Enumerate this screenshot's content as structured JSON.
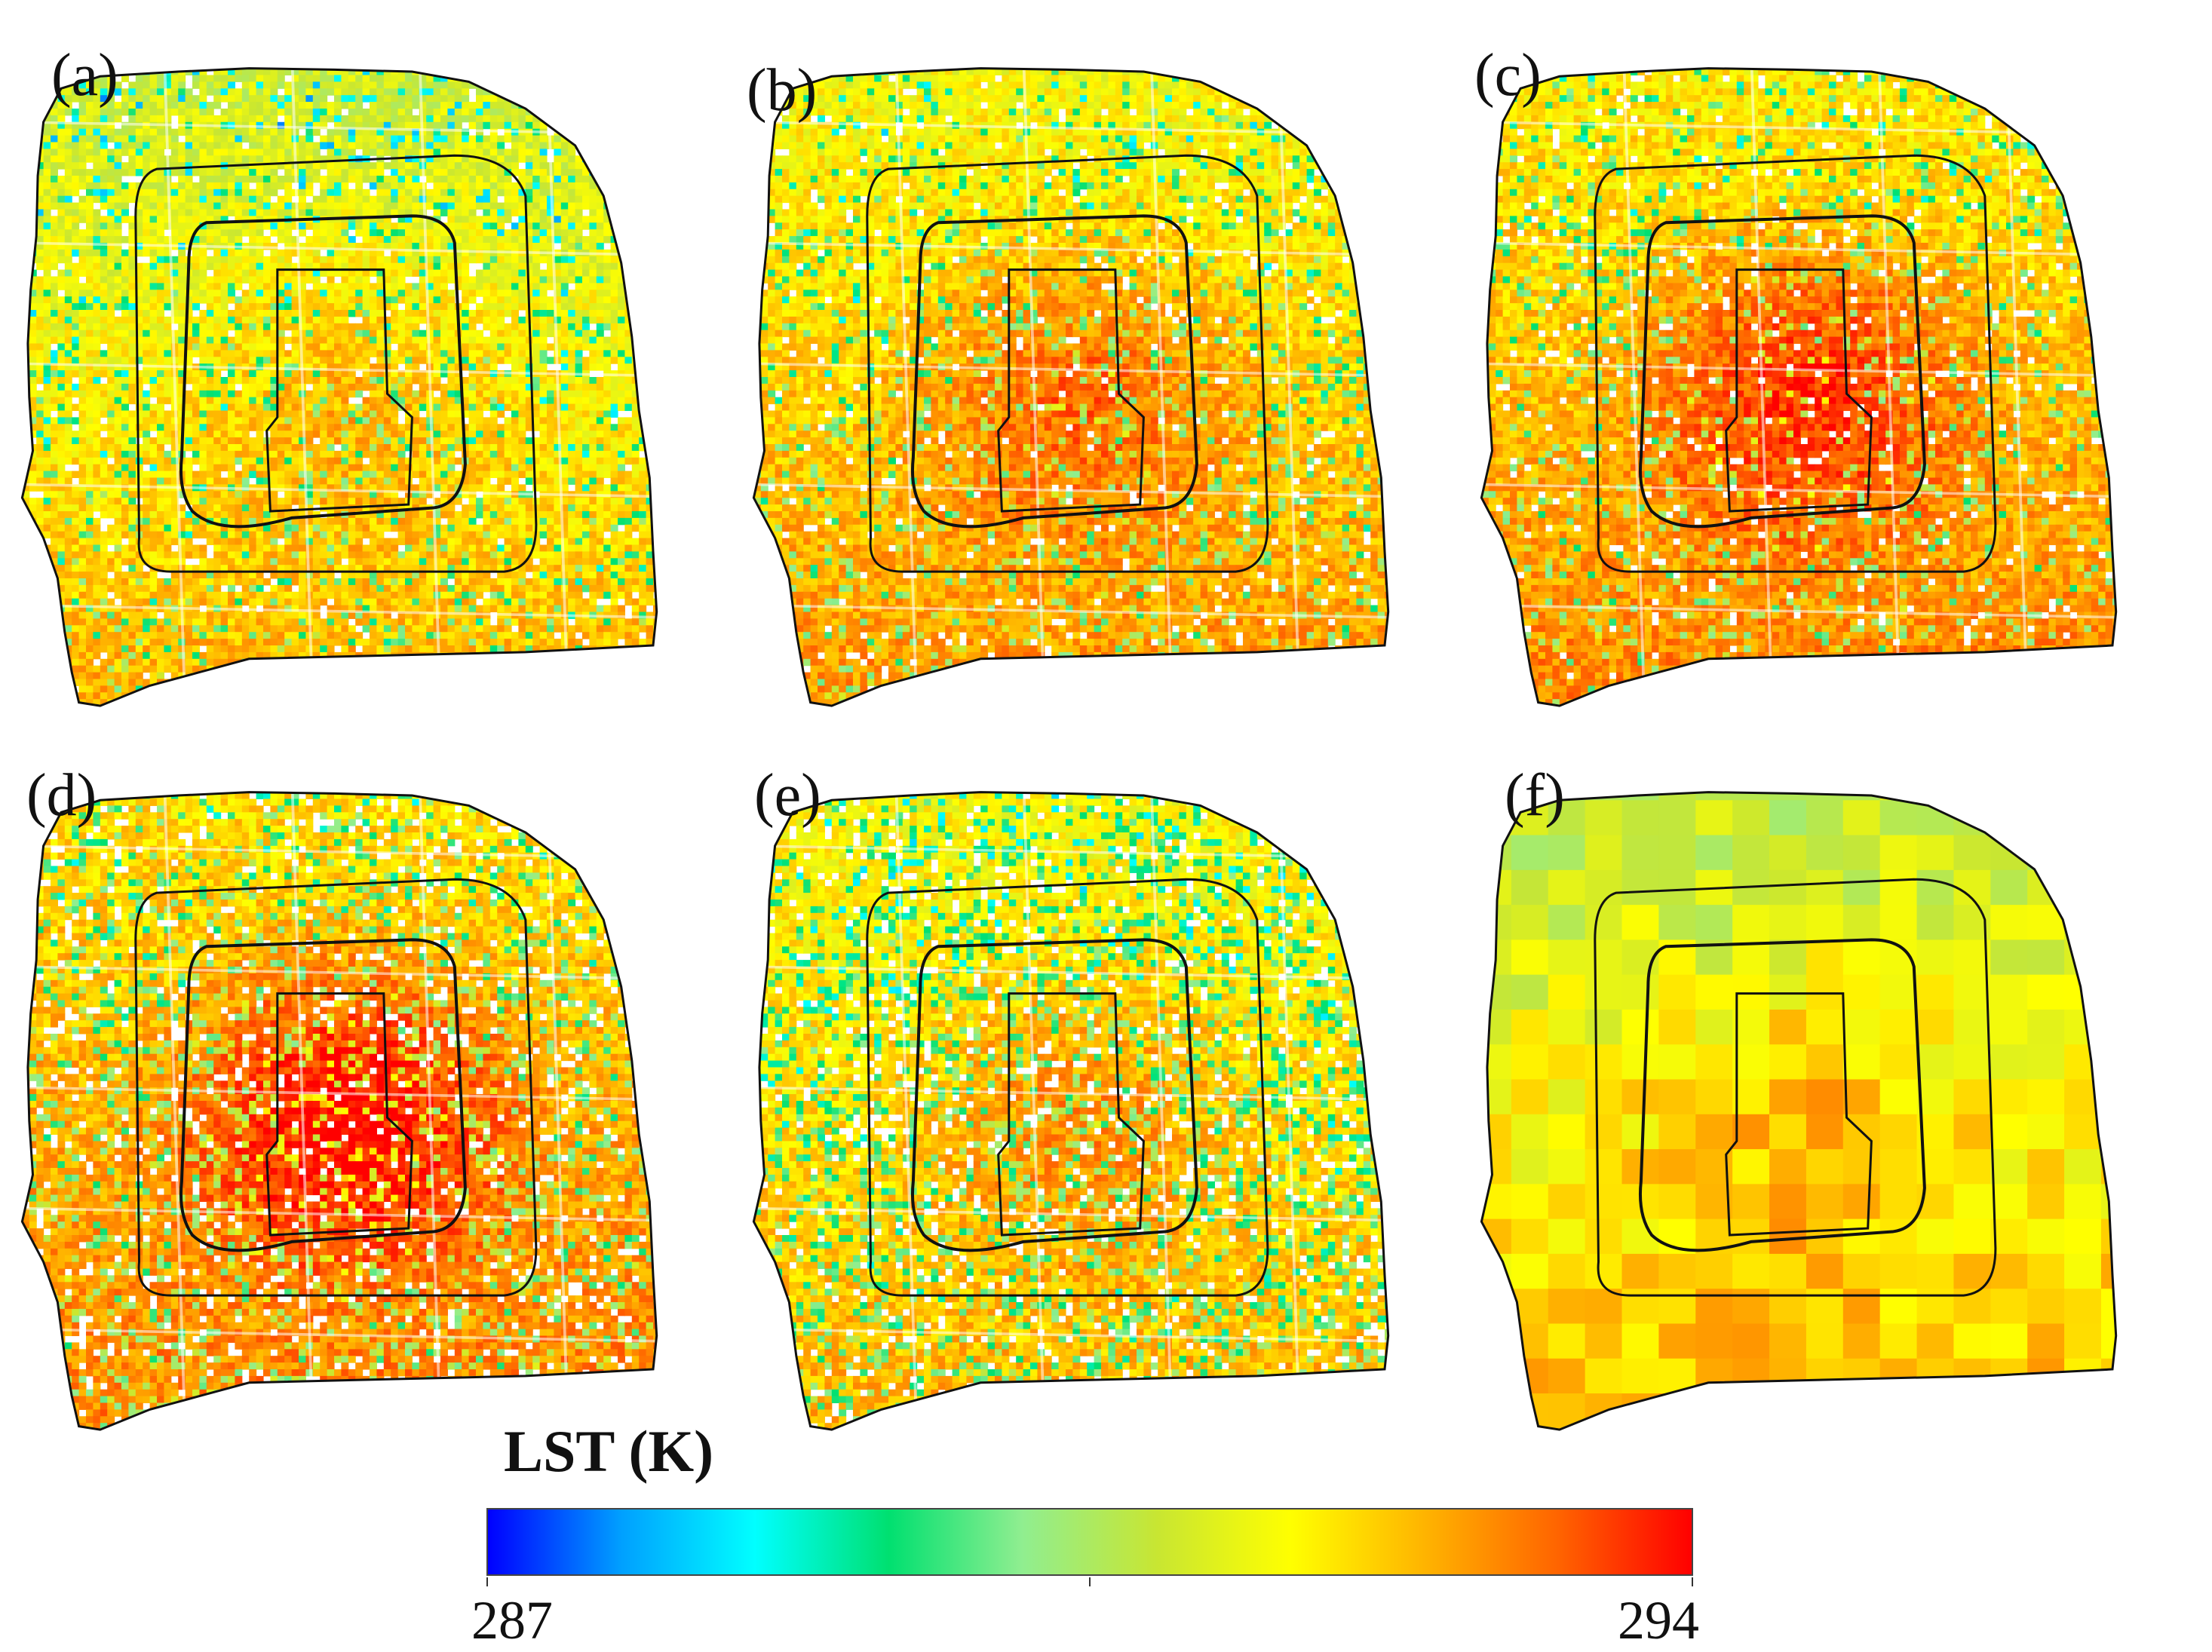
{
  "panels": [
    {
      "label": "(a)",
      "variant": "a"
    },
    {
      "label": "(b)",
      "variant": "b"
    },
    {
      "label": "(c)",
      "variant": "c"
    },
    {
      "label": "(d)",
      "variant": "d"
    },
    {
      "label": "(e)",
      "variant": "e"
    },
    {
      "label": "(f)",
      "variant": "f"
    }
  ],
  "legend": {
    "title": "LST (K)",
    "min_label": "287",
    "max_label": "294",
    "min": 287,
    "max": 294,
    "colors": [
      "#0000ff",
      "#00a0ff",
      "#00ffff",
      "#00e070",
      "#90ee90",
      "#c8e632",
      "#ffff00",
      "#ffb400",
      "#ff6400",
      "#ff0000"
    ]
  }
}
